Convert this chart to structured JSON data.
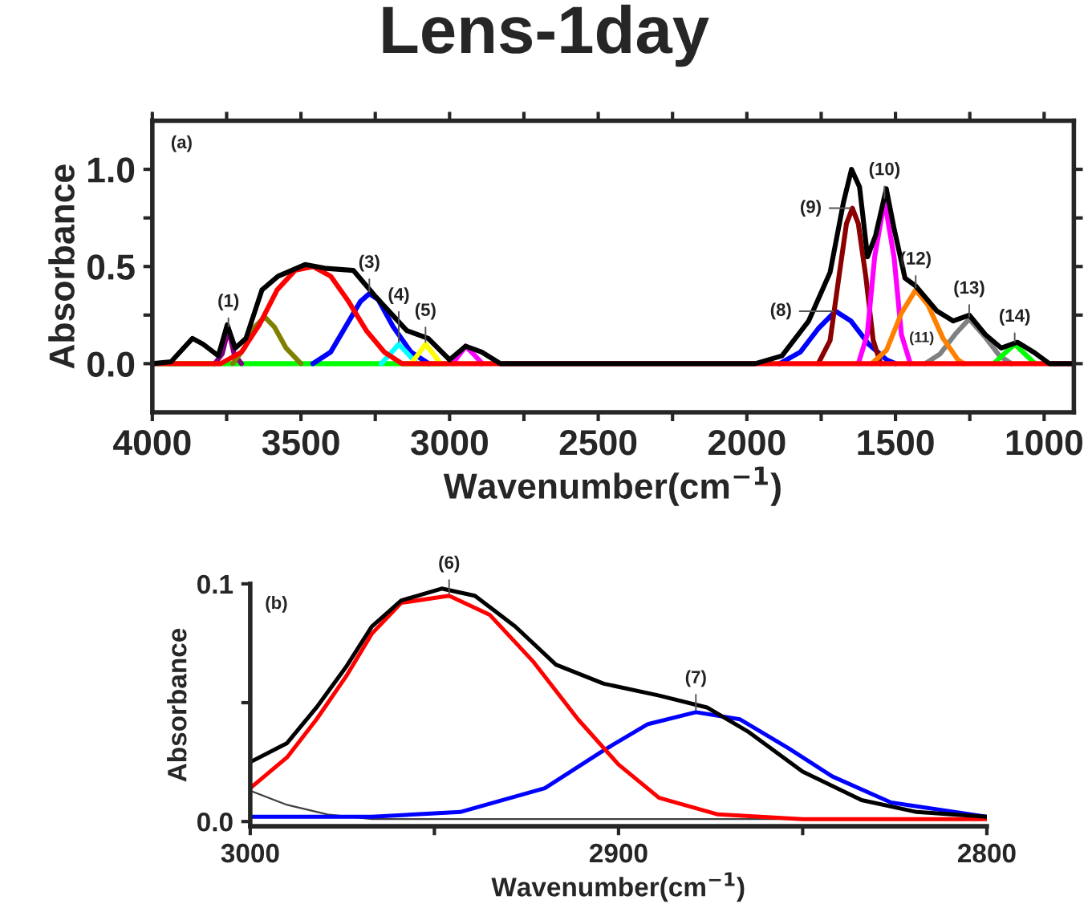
{
  "chart_data": [
    {
      "type": "line",
      "title": "Lens-1day",
      "xlabel": "Wavenumber(cm$^{−1}$)",
      "ylabel": "Absorbance",
      "xlim": [
        4000,
        900
      ],
      "ylim": [
        -0.25,
        1.25
      ],
      "xticks": [
        4000,
        {
          "value": 3750,
          "label": null
        },
        3500,
        {
          "value": 3250,
          "label": null
        },
        3000,
        {
          "value": 2750,
          "label": null
        },
        2500,
        {
          "value": 2250,
          "label": null
        },
        2000,
        {
          "value": 1750,
          "label": null
        },
        1500,
        {
          "value": 1250,
          "label": null
        },
        1000
      ],
      "yticks": [
        {
          "value": 0,
          "label": "0.0"
        },
        {
          "value": 0.25,
          "label": null
        },
        {
          "value": 0.5,
          "label": "0.5"
        },
        {
          "value": 0.75,
          "label": null
        },
        {
          "value": 1.0,
          "label": "1.0"
        }
      ],
      "grid": false,
      "legend": false,
      "series": [
        {
          "color": "#00ff00",
          "x": [
            3990,
            3010
          ],
          "values": [
            0,
            0
          ]
        },
        {
          "name": "(1)",
          "color": "#800080",
          "x": [
            3790,
            3765,
            3744,
            3725,
            3700
          ],
          "values": [
            0,
            0.05,
            0.18,
            0.05,
            0
          ]
        },
        {
          "color": "#808000",
          "x": [
            3730,
            3690,
            3655,
            3622,
            3590,
            3550,
            3500
          ],
          "values": [
            0,
            0.08,
            0.19,
            0.24,
            0.19,
            0.08,
            0
          ]
        },
        {
          "name": "(3)",
          "color": "#0000ff",
          "x": [
            3460,
            3400,
            3350,
            3300,
            3270,
            3240,
            3190,
            3130,
            3070
          ],
          "values": [
            0,
            0.06,
            0.19,
            0.32,
            0.36,
            0.33,
            0.19,
            0.06,
            0
          ]
        },
        {
          "name": "(4)",
          "color": "#00ffff",
          "x": [
            3230,
            3200,
            3171,
            3140,
            3110
          ],
          "values": [
            0,
            0.05,
            0.1,
            0.05,
            0
          ]
        },
        {
          "name": "(5)",
          "color": "#ffff00",
          "x": [
            3130,
            3105,
            3081,
            3055,
            3030
          ],
          "values": [
            0,
            0.05,
            0.1,
            0.05,
            0
          ]
        },
        {
          "color": "#ff00ff",
          "x": [
            2990,
            2965,
            2946,
            2920,
            2890
          ],
          "values": [
            0,
            0.05,
            0.09,
            0.05,
            0
          ]
        },
        {
          "name": "(8)",
          "color": "#0000ff",
          "x": [
            1890,
            1820,
            1760,
            1702,
            1650,
            1590,
            1530,
            1500
          ],
          "values": [
            0,
            0.06,
            0.18,
            0.27,
            0.22,
            0.1,
            0.02,
            0
          ]
        },
        {
          "name": "(9)",
          "color": "#8b0000",
          "x": [
            1760,
            1720,
            1690,
            1665,
            1645,
            1625,
            1600,
            1575,
            1550
          ],
          "values": [
            0,
            0.12,
            0.45,
            0.72,
            0.8,
            0.72,
            0.45,
            0.12,
            0
          ]
        },
        {
          "name": "(10)",
          "color": "#ff00ff",
          "x": [
            1625,
            1595,
            1570,
            1537,
            1505,
            1480,
            1450
          ],
          "values": [
            0,
            0.15,
            0.55,
            0.84,
            0.55,
            0.15,
            0
          ]
        },
        {
          "name": "(13)",
          "color": "#808080",
          "x": [
            1400,
            1350,
            1300,
            1252,
            1200,
            1150,
            1110
          ],
          "values": [
            0,
            0.05,
            0.15,
            0.23,
            0.14,
            0.04,
            0
          ]
        },
        {
          "name": "(12)",
          "color": "#ff8000",
          "x": [
            1580,
            1530,
            1480,
            1432,
            1390,
            1340,
            1290,
            1270
          ],
          "values": [
            0,
            0.07,
            0.26,
            0.38,
            0.3,
            0.13,
            0.02,
            0
          ]
        },
        {
          "name": "(14)",
          "color": "#00ff00",
          "x": [
            1170,
            1135,
            1099,
            1065,
            1030
          ],
          "values": [
            0,
            0.05,
            0.1,
            0.05,
            0
          ]
        },
        {
          "color": "#ff0000",
          "x": [
            4000,
            3770,
            3700,
            3640,
            3580,
            3520,
            3459,
            3400,
            3340,
            3280,
            3220,
            3160,
            900
          ],
          "values": [
            0,
            0,
            0.06,
            0.2,
            0.38,
            0.48,
            0.5,
            0.45,
            0.32,
            0.17,
            0.06,
            0,
            0
          ]
        },
        {
          "color": "#000000",
          "x": [
            4000,
            3937,
            3865,
            3829,
            3778,
            3748,
            3721,
            3685,
            3631,
            3577,
            3486,
            3414,
            3324,
            3252,
            3144,
            3072,
            3000,
            2946,
            2892,
            2829,
            1972,
            1882,
            1792,
            1720,
            1675,
            1648,
            1621,
            1594,
            1567,
            1531,
            1504,
            1468,
            1432,
            1360,
            1306,
            1252,
            1198,
            1144,
            1090,
            1036,
            982,
            900
          ],
          "values": [
            0,
            0.01,
            0.13,
            0.1,
            0.04,
            0.2,
            0.08,
            0.13,
            0.38,
            0.45,
            0.51,
            0.49,
            0.48,
            0.35,
            0.17,
            0.13,
            0.02,
            0.09,
            0.06,
            0,
            0,
            0.04,
            0.22,
            0.47,
            0.83,
            1.0,
            0.91,
            0.55,
            0.66,
            0.9,
            0.69,
            0.44,
            0.4,
            0.27,
            0.22,
            0.25,
            0.15,
            0.08,
            0.11,
            0.06,
            0,
            0
          ]
        }
      ],
      "annotations": [
        "(a)",
        {
          "text": "(11)",
          "x": 1340,
          "y": 0.13
        }
      ]
    },
    {
      "type": "line",
      "xlabel": "Wavenumber(cm$^{−1}$)",
      "ylabel": "Absorbance",
      "xlim": [
        3000,
        2800
      ],
      "ylim": [
        -0.002,
        0.1
      ],
      "xticks": [
        3000,
        {
          "value": 2950,
          "label": null
        },
        2900,
        {
          "value": 2850,
          "label": null
        },
        2800
      ],
      "yticks": [
        {
          "value": 0,
          "label": "0.0"
        },
        {
          "value": 0.05,
          "label": null
        },
        {
          "value": 0.1,
          "label": "0.1"
        }
      ],
      "grid": false,
      "legend": false,
      "series": [
        {
          "color": "#404040",
          "x": [
            3000,
            2990,
            2979,
            2967,
            2800
          ],
          "values": [
            0.013,
            0.007,
            0.003,
            0.001,
            0.001
          ]
        },
        {
          "name": "(7)",
          "color": "#0000ff",
          "x": [
            3000,
            2967,
            2943,
            2920,
            2904,
            2892,
            2879,
            2867,
            2854,
            2842,
            2826,
            2800
          ],
          "values": [
            0.002,
            0.002,
            0.004,
            0.014,
            0.03,
            0.041,
            0.046,
            0.043,
            0.031,
            0.019,
            0.008,
            0.002
          ]
        },
        {
          "name": "(6)",
          "color": "#ff0000",
          "x": [
            3000,
            2990,
            2982,
            2974,
            2967,
            2959,
            2946,
            2935,
            2923,
            2911,
            2900,
            2889,
            2873,
            2850,
            2800
          ],
          "values": [
            0.014,
            0.027,
            0.043,
            0.061,
            0.079,
            0.092,
            0.095,
            0.087,
            0.067,
            0.043,
            0.024,
            0.01,
            0.003,
            0.001,
            0.001
          ]
        },
        {
          "color": "#000000",
          "x": [
            3000,
            2990,
            2982,
            2974,
            2967,
            2959,
            2948,
            2939,
            2928,
            2917,
            2904,
            2889,
            2876,
            2865,
            2850,
            2834,
            2819,
            2800
          ],
          "values": [
            0.025,
            0.033,
            0.048,
            0.065,
            0.082,
            0.093,
            0.098,
            0.095,
            0.082,
            0.066,
            0.058,
            0.053,
            0.048,
            0.038,
            0.021,
            0.009,
            0.004,
            0.002
          ]
        }
      ],
      "annotations": [
        "(b)"
      ]
    }
  ]
}
